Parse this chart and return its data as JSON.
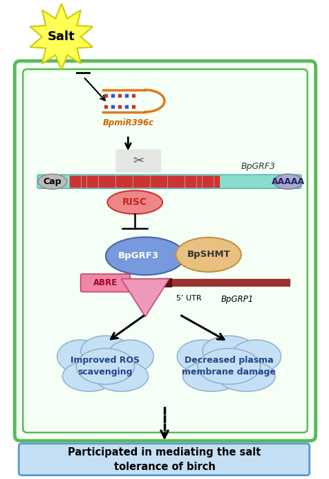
{
  "fig_width": 4.76,
  "fig_height": 6.92,
  "bg_color": "#ffffff",
  "cell_color": "#55bb55",
  "cell_face": "#f5fff5",
  "bottom_box_color": "#c5dff5",
  "bottom_box_edge": "#5599cc",
  "bottom_text": "Participated in mediating the salt\ntolerance of birch",
  "salt_text": "Salt",
  "mirna_label": "BpmiR396c",
  "grf3_top_label": "BpGRF3",
  "cap_label": "Cap",
  "aaaaa_label": "AAAAA",
  "risc_label": "RISC",
  "bpgrf3_label": "BpGRF3",
  "bpshmt_label": "BpSHMT",
  "abre_label": "ABRE",
  "utr_label": "5’ UTR",
  "grp1_label": "BpGRP1",
  "ros_label": "Improved ROS\nscavenging",
  "plasma_label": "Decreased plasma\nmembrane damage"
}
